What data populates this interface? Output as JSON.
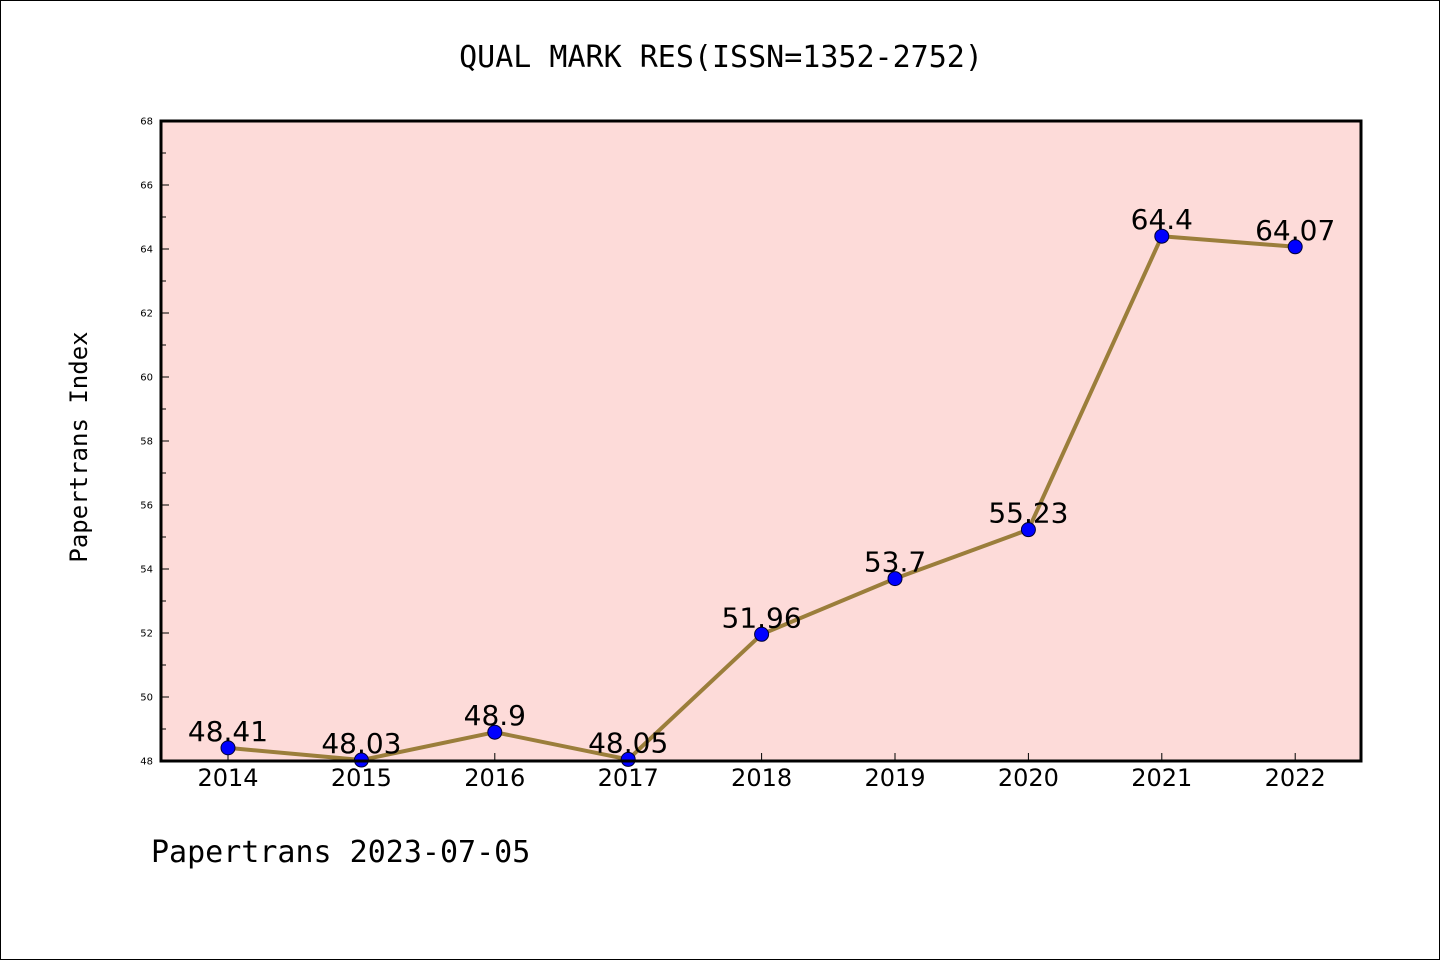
{
  "chart_data": {
    "type": "line",
    "title": "QUAL MARK RES(ISSN=1352-2752)",
    "xlabel": "",
    "ylabel": "Papertrans Index",
    "categories": [
      "2014",
      "2015",
      "2016",
      "2017",
      "2018",
      "2019",
      "2020",
      "2021",
      "2022"
    ],
    "series": [
      {
        "values": [
          48.41,
          48.03,
          48.9,
          48.05,
          51.96,
          53.7,
          55.23,
          64.4,
          64.07
        ],
        "labels": [
          "48.41",
          "48.03",
          "48.9",
          "48.05",
          "51.96",
          "53.7",
          "55.23",
          "64.4",
          "64.07"
        ],
        "line_color": "#9b7e3b",
        "marker_color": "#0000ff"
      }
    ],
    "ylim": [
      48,
      68
    ],
    "yticks": [
      48,
      50,
      52,
      54,
      56,
      58,
      60,
      62,
      64,
      66,
      68
    ],
    "plot_background": "#fddbd9",
    "grid": false,
    "legend": "none"
  },
  "footer": {
    "text": "Papertrans 2023-07-05"
  }
}
